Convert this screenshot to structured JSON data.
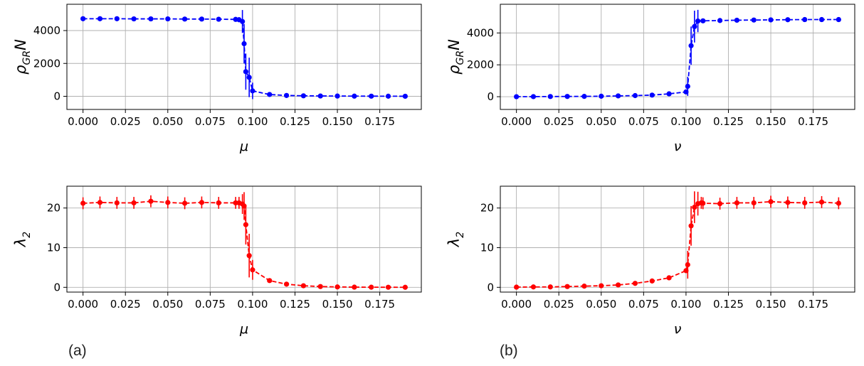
{
  "panel_labels": {
    "a": "(a)",
    "b": "(b)"
  },
  "colors": {
    "blue": "#0000ff",
    "red": "#ff0000",
    "grid": "#b0b0b0",
    "axis": "#000000"
  },
  "chart_data": [
    {
      "id": "top-left",
      "type": "line",
      "xlabel": "μ",
      "ylabel": "ρ_GR N",
      "xlim": [
        -0.0095,
        0.1995
      ],
      "ylim": [
        -800,
        5600
      ],
      "xticks": [
        "0.000",
        "0.025",
        "0.050",
        "0.075",
        "0.100",
        "0.125",
        "0.150",
        "0.175"
      ],
      "yticks": [
        "0",
        "2000",
        "4000"
      ],
      "grid": true,
      "color": "blue",
      "series": [
        {
          "x": [
            0,
            0.01,
            0.02,
            0.03,
            0.04,
            0.05,
            0.06,
            0.07,
            0.08,
            0.09,
            0.092,
            0.094,
            0.095,
            0.096,
            0.098,
            0.1,
            0.11,
            0.12,
            0.13,
            0.14,
            0.15,
            0.16,
            0.17,
            0.18,
            0.19
          ],
          "y": [
            4720,
            4720,
            4720,
            4710,
            4710,
            4710,
            4700,
            4700,
            4690,
            4680,
            4660,
            4550,
            3200,
            1500,
            1150,
            330,
            110,
            50,
            30,
            20,
            15,
            10,
            8,
            5,
            3
          ],
          "err": [
            0,
            0,
            0,
            0,
            0,
            0,
            0,
            0,
            0,
            0,
            150,
            700,
            1200,
            1100,
            1200,
            500,
            0,
            0,
            0,
            0,
            0,
            0,
            0,
            0,
            0
          ]
        }
      ]
    },
    {
      "id": "top-right",
      "type": "line",
      "xlabel": "ν",
      "ylabel": "ρ_GR N",
      "xlim": [
        -0.0095,
        0.1995
      ],
      "ylim": [
        -800,
        5800
      ],
      "xticks": [
        "0.000",
        "0.025",
        "0.050",
        "0.075",
        "0.100",
        "0.125",
        "0.150",
        "0.175"
      ],
      "yticks": [
        "0",
        "2000",
        "4000"
      ],
      "grid": true,
      "color": "blue",
      "series": [
        {
          "x": [
            0,
            0.01,
            0.02,
            0.03,
            0.04,
            0.05,
            0.06,
            0.07,
            0.08,
            0.09,
            0.1,
            0.101,
            0.103,
            0.105,
            0.107,
            0.11,
            0.12,
            0.13,
            0.14,
            0.15,
            0.16,
            0.17,
            0.18,
            0.19
          ],
          "y": [
            0,
            5,
            10,
            15,
            20,
            30,
            50,
            70,
            100,
            180,
            300,
            650,
            3200,
            4400,
            4750,
            4760,
            4780,
            4800,
            4810,
            4820,
            4830,
            4840,
            4840,
            4840
          ],
          "err": [
            0,
            0,
            0,
            0,
            0,
            0,
            0,
            0,
            0,
            0,
            0,
            600,
            1200,
            1000,
            700,
            0,
            0,
            0,
            0,
            0,
            0,
            0,
            0,
            0
          ]
        }
      ]
    },
    {
      "id": "bottom-left",
      "type": "line",
      "xlabel": "μ",
      "ylabel": "λ_2",
      "xlim": [
        -0.0095,
        0.1995
      ],
      "ylim": [
        -1.2,
        25.5
      ],
      "xticks": [
        "0.000",
        "0.025",
        "0.050",
        "0.075",
        "0.100",
        "0.125",
        "0.150",
        "0.175"
      ],
      "yticks": [
        "0",
        "10",
        "20"
      ],
      "grid": true,
      "color": "red",
      "series": [
        {
          "x": [
            0,
            0.01,
            0.02,
            0.03,
            0.04,
            0.05,
            0.06,
            0.07,
            0.08,
            0.09,
            0.092,
            0.094,
            0.095,
            0.096,
            0.098,
            0.1,
            0.11,
            0.12,
            0.13,
            0.14,
            0.15,
            0.16,
            0.17,
            0.18,
            0.19
          ],
          "y": [
            21.2,
            21.4,
            21.3,
            21.3,
            21.7,
            21.4,
            21.2,
            21.4,
            21.3,
            21.3,
            21.3,
            21.0,
            20.5,
            15.8,
            8.0,
            4.4,
            1.7,
            0.8,
            0.4,
            0.2,
            0.1,
            0.05,
            0.03,
            0.02,
            0.01
          ],
          "err": [
            1.5,
            1.5,
            1.5,
            1.5,
            1.5,
            1.5,
            1.5,
            1.5,
            1.5,
            1.5,
            1.5,
            2.5,
            3.5,
            5,
            5.5,
            2.5,
            0,
            0,
            0,
            0,
            0,
            0,
            0,
            0,
            0
          ]
        }
      ]
    },
    {
      "id": "bottom-right",
      "type": "line",
      "xlabel": "ν",
      "ylabel": "λ_2",
      "xlim": [
        -0.0095,
        0.1995
      ],
      "ylim": [
        -1.2,
        25.5
      ],
      "xticks": [
        "0.000",
        "0.025",
        "0.050",
        "0.075",
        "0.100",
        "0.125",
        "0.150",
        "0.175"
      ],
      "yticks": [
        "0",
        "10",
        "20"
      ],
      "grid": true,
      "color": "red",
      "series": [
        {
          "x": [
            0,
            0.01,
            0.02,
            0.03,
            0.04,
            0.05,
            0.06,
            0.07,
            0.08,
            0.09,
            0.1,
            0.101,
            0.103,
            0.105,
            0.107,
            0.109,
            0.11,
            0.12,
            0.13,
            0.14,
            0.15,
            0.16,
            0.17,
            0.18,
            0.19
          ],
          "y": [
            0.05,
            0.1,
            0.1,
            0.2,
            0.3,
            0.4,
            0.6,
            1.0,
            1.6,
            2.4,
            4.2,
            5.7,
            15.5,
            20.2,
            21.1,
            21.3,
            21.2,
            21.1,
            21.3,
            21.3,
            21.6,
            21.4,
            21.3,
            21.5,
            21.2
          ],
          "err": [
            0,
            0,
            0,
            0,
            0,
            0,
            0,
            0,
            0,
            0,
            0,
            3.5,
            5,
            4,
            3,
            1.5,
            1.5,
            1.5,
            1.5,
            1.5,
            1.5,
            1.5,
            1.5,
            1.5,
            1.5
          ]
        }
      ]
    }
  ]
}
